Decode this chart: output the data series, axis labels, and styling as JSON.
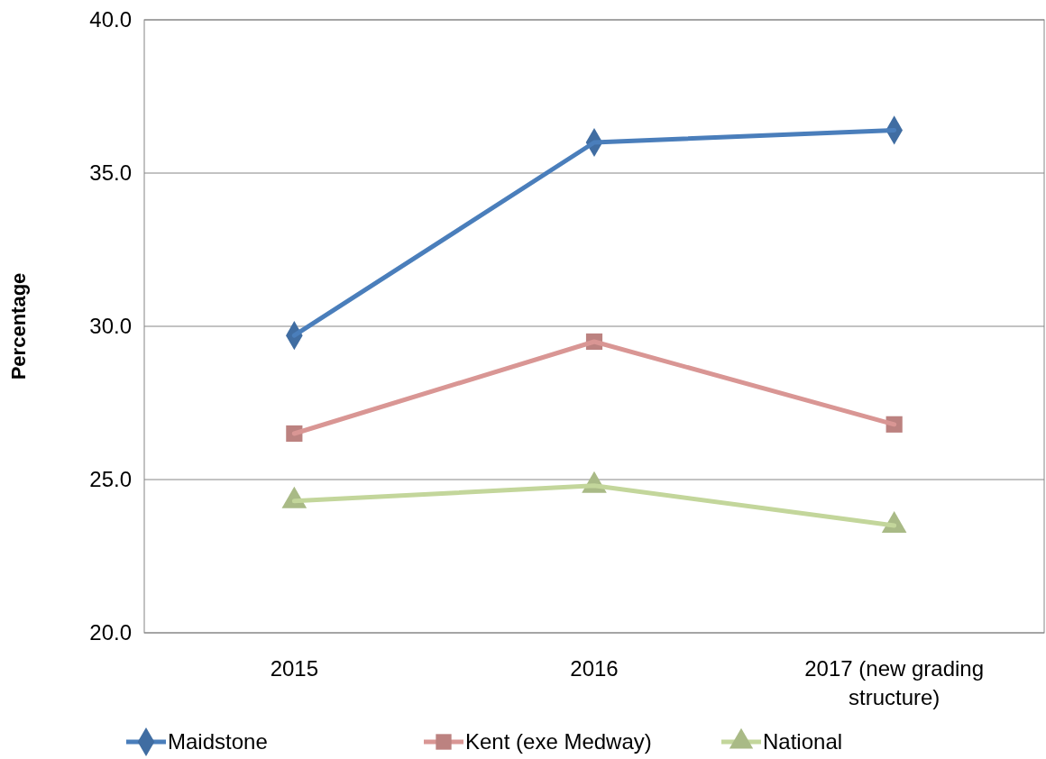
{
  "chart_data": {
    "type": "line",
    "ylabel": "Percentage",
    "categories": [
      "2015",
      "2016",
      "2017 (new grading structure)"
    ],
    "series": [
      {
        "name": "Maidstone",
        "color": "#4a7ebb",
        "marker": "diamond",
        "values": [
          29.7,
          36.0,
          36.4
        ]
      },
      {
        "name": "Kent (exe Medway)",
        "color": "#d99694",
        "marker": "square",
        "values": [
          26.5,
          29.5,
          26.8
        ]
      },
      {
        "name": "National",
        "color": "#c3d69b",
        "marker": "triangle",
        "values": [
          24.3,
          24.8,
          23.5
        ]
      }
    ],
    "ylim": [
      20,
      40
    ],
    "yticks": [
      {
        "value": 20,
        "label": "20.0"
      },
      {
        "value": 25,
        "label": "25.0"
      },
      {
        "value": 30,
        "label": "30.0"
      },
      {
        "value": 35,
        "label": "35.0"
      },
      {
        "value": 40,
        "label": "40.0"
      }
    ],
    "grid": "y",
    "legend": "bottom",
    "line_style": "solid"
  }
}
